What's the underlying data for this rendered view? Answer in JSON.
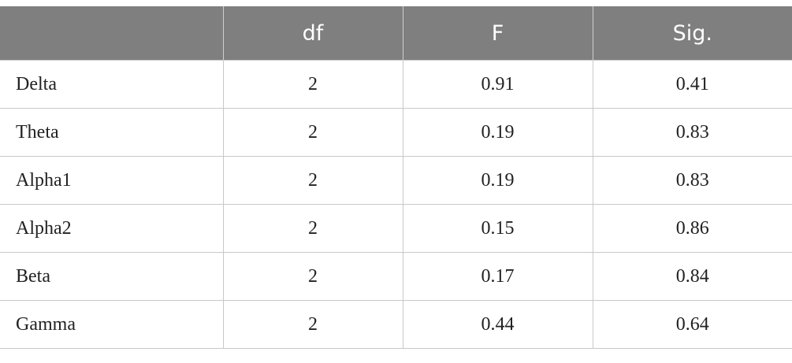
{
  "table": {
    "header": [
      "df",
      "F",
      "Sig."
    ],
    "rows": [
      [
        "Delta",
        "2",
        "0.91",
        "0.41"
      ],
      [
        "Theta",
        "2",
        "0.19",
        "0.83"
      ],
      [
        "Alpha1",
        "2",
        "0.19",
        "0.83"
      ],
      [
        "Alpha2",
        "2",
        "0.15",
        "0.86"
      ],
      [
        "Beta",
        "2",
        "0.17",
        "0.84"
      ],
      [
        "Gamma",
        "2",
        "0.44",
        "0.64"
      ]
    ]
  }
}
